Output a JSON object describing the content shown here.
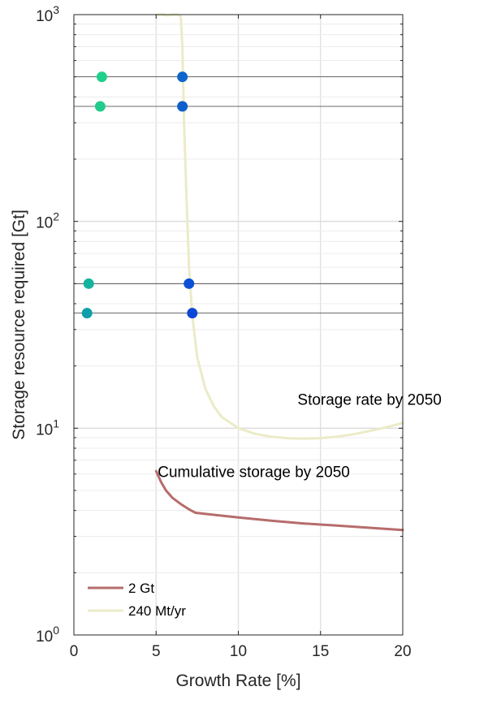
{
  "chart_data": {
    "type": "line",
    "title": "",
    "xlabel": "Growth Rate [%]",
    "ylabel": "Storage resource required [Gt]",
    "xlim": [
      0,
      20
    ],
    "ylim": [
      1,
      1000
    ],
    "yscale": "log",
    "grid": true,
    "x_ticks": [
      {
        "value": 0,
        "label": "0"
      },
      {
        "value": 5,
        "label": "5"
      },
      {
        "value": 10,
        "label": "10"
      },
      {
        "value": 15,
        "label": "15"
      },
      {
        "value": 20,
        "label": "20"
      }
    ],
    "y_ticks": [
      {
        "value": 1,
        "base": "10",
        "exp": "0"
      },
      {
        "value": 10,
        "base": "10",
        "exp": "1"
      },
      {
        "value": 100,
        "base": "10",
        "exp": "2"
      },
      {
        "value": 1000,
        "base": "10",
        "exp": "3"
      }
    ],
    "horizontal_lines": [
      500,
      360,
      50,
      36
    ],
    "series": [
      {
        "name": "2 Gt",
        "color": "#b76c6c",
        "x": [
          5.0,
          5.3,
          5.6,
          6.0,
          6.5,
          7.0,
          7.4,
          8,
          10,
          12,
          14,
          16,
          18,
          20
        ],
        "y": [
          6.2,
          5.5,
          5.0,
          4.6,
          4.3,
          4.05,
          3.9,
          3.85,
          3.7,
          3.57,
          3.46,
          3.38,
          3.3,
          3.22
        ]
      },
      {
        "name": "240 Mt/yr",
        "color": "#ebebc8",
        "x": [
          5.0,
          5.4,
          5.7,
          6.0,
          6.3,
          6.5,
          6.6,
          6.7,
          6.85,
          7.0,
          7.2,
          7.5,
          8.0,
          8.5,
          9.0,
          10,
          11,
          12,
          13,
          14,
          15,
          16,
          17,
          18,
          19,
          20
        ],
        "y": [
          1000,
          1000,
          990,
          1000,
          1000,
          980,
          700,
          300,
          130,
          60,
          35,
          22,
          15.5,
          12.8,
          11.3,
          10.0,
          9.4,
          9.1,
          8.95,
          8.9,
          8.95,
          9.1,
          9.35,
          9.7,
          10.1,
          10.6
        ]
      }
    ],
    "points": [
      {
        "x": 1.7,
        "y": 500,
        "color": "#1fd08a"
      },
      {
        "x": 1.6,
        "y": 360,
        "color": "#22cc8c"
      },
      {
        "x": 6.6,
        "y": 500,
        "color": "#0e66cc"
      },
      {
        "x": 6.6,
        "y": 360,
        "color": "#0e5fcc"
      },
      {
        "x": 0.9,
        "y": 50,
        "color": "#14b39f"
      },
      {
        "x": 0.8,
        "y": 36,
        "color": "#0e9fa9"
      },
      {
        "x": 7.0,
        "y": 50,
        "color": "#0b50d6"
      },
      {
        "x": 7.2,
        "y": 36,
        "color": "#0b47d6"
      }
    ],
    "annotations": [
      {
        "text": "Storage rate by 2050",
        "x": 13.6,
        "y": 13
      },
      {
        "text": "Cumulative storage by 2050",
        "x": 5.1,
        "y": 5.8
      }
    ],
    "legend": {
      "position": "bottom-left"
    }
  }
}
